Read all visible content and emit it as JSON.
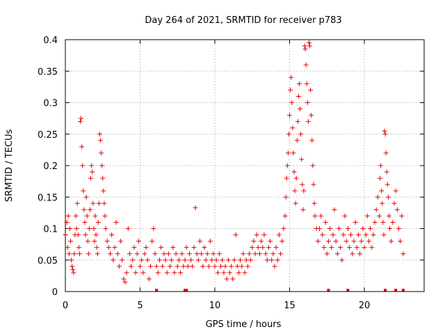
{
  "chart_data": {
    "type": "scatter",
    "title": "Day 264 of 2021, SRMTID for receiver p783",
    "xlabel": "GPS time / hours",
    "ylabel": "SRMTID / TECUs",
    "xlim": [
      0,
      24
    ],
    "ylim": [
      0,
      0.4
    ],
    "xticks": [
      0,
      5,
      10,
      15,
      20
    ],
    "yticks": [
      0,
      0.05,
      0.1,
      0.15,
      0.2,
      0.25,
      0.3,
      0.35,
      0.4
    ],
    "xtick_labels": [
      "0",
      "5",
      "10",
      "15",
      "20"
    ],
    "ytick_labels": [
      "0",
      "0.05",
      "0.1",
      "0.15",
      "0.2",
      "0.25",
      "0.3",
      "0.35",
      "0.4"
    ],
    "grid": true,
    "marker": "+",
    "color": "#e60000",
    "series": [
      {
        "name": "SRMTID",
        "points": [
          [
            0.0,
            0.09
          ],
          [
            0.1,
            0.11
          ],
          [
            0.15,
            0.07
          ],
          [
            0.2,
            0.12
          ],
          [
            0.25,
            0.06
          ],
          [
            0.3,
            0.1
          ],
          [
            0.35,
            0.08
          ],
          [
            0.4,
            0.05
          ],
          [
            0.45,
            0.04
          ],
          [
            0.5,
            0.035
          ],
          [
            0.55,
            0.03
          ],
          [
            0.6,
            0.06
          ],
          [
            0.65,
            0.09
          ],
          [
            0.7,
            0.12
          ],
          [
            0.75,
            0.1
          ],
          [
            0.8,
            0.14
          ],
          [
            0.85,
            0.09
          ],
          [
            0.9,
            0.07
          ],
          [
            0.95,
            0.06
          ],
          [
            1.0,
            0.27
          ],
          [
            1.05,
            0.275
          ],
          [
            1.1,
            0.23
          ],
          [
            1.15,
            0.2
          ],
          [
            1.2,
            0.16
          ],
          [
            1.25,
            0.13
          ],
          [
            1.3,
            0.11
          ],
          [
            1.35,
            0.09
          ],
          [
            1.4,
            0.15
          ],
          [
            1.45,
            0.12
          ],
          [
            1.5,
            0.08
          ],
          [
            1.55,
            0.06
          ],
          [
            1.6,
            0.1
          ],
          [
            1.65,
            0.13
          ],
          [
            1.7,
            0.18
          ],
          [
            1.75,
            0.2
          ],
          [
            1.8,
            0.19
          ],
          [
            1.85,
            0.14
          ],
          [
            1.9,
            0.1
          ],
          [
            1.95,
            0.08
          ],
          [
            2.0,
            0.12
          ],
          [
            2.05,
            0.09
          ],
          [
            2.1,
            0.07
          ],
          [
            2.15,
            0.06
          ],
          [
            2.2,
            0.11
          ],
          [
            2.25,
            0.14
          ],
          [
            2.3,
            0.25
          ],
          [
            2.35,
            0.24
          ],
          [
            2.4,
            0.22
          ],
          [
            2.45,
            0.2
          ],
          [
            2.5,
            0.18
          ],
          [
            2.55,
            0.16
          ],
          [
            2.6,
            0.14
          ],
          [
            2.65,
            0.12
          ],
          [
            2.7,
            0.1
          ],
          [
            2.8,
            0.08
          ],
          [
            2.9,
            0.07
          ],
          [
            3.0,
            0.06
          ],
          [
            3.1,
            0.09
          ],
          [
            3.2,
            0.05
          ],
          [
            3.3,
            0.07
          ],
          [
            3.4,
            0.11
          ],
          [
            3.5,
            0.06
          ],
          [
            3.6,
            0.04
          ],
          [
            3.7,
            0.08
          ],
          [
            3.8,
            0.05
          ],
          [
            3.9,
            0.02
          ],
          [
            4.0,
            0.015
          ],
          [
            4.1,
            0.03
          ],
          [
            4.2,
            0.1
          ],
          [
            4.3,
            0.06
          ],
          [
            4.4,
            0.04
          ],
          [
            4.5,
            0.05
          ],
          [
            4.6,
            0.07
          ],
          [
            4.7,
            0.03
          ],
          [
            4.8,
            0.06
          ],
          [
            4.9,
            0.08
          ],
          [
            5.0,
            0.04
          ],
          [
            5.1,
            0.05
          ],
          [
            5.2,
            0.03
          ],
          [
            5.3,
            0.06
          ],
          [
            5.4,
            0.07
          ],
          [
            5.5,
            0.05
          ],
          [
            5.6,
            0.02
          ],
          [
            5.7,
            0.04
          ],
          [
            5.8,
            0.08
          ],
          [
            5.9,
            0.1
          ],
          [
            6.0,
            0.06
          ],
          [
            6.1,
            0.04
          ],
          [
            6.2,
            0.03
          ],
          [
            6.3,
            0.05
          ],
          [
            6.4,
            0.07
          ],
          [
            6.5,
            0.04
          ],
          [
            6.6,
            0.06
          ],
          [
            6.7,
            0.05
          ],
          [
            6.8,
            0.03
          ],
          [
            6.9,
            0.06
          ],
          [
            7.0,
            0.04
          ],
          [
            7.1,
            0.05
          ],
          [
            7.2,
            0.07
          ],
          [
            7.3,
            0.03
          ],
          [
            7.4,
            0.06
          ],
          [
            7.5,
            0.04
          ],
          [
            7.6,
            0.05
          ],
          [
            7.7,
            0.03
          ],
          [
            7.8,
            0.06
          ],
          [
            7.9,
            0.04
          ],
          [
            8.0,
            0.05
          ],
          [
            8.1,
            0.07
          ],
          [
            8.2,
            0.04
          ],
          [
            8.3,
            0.06
          ],
          [
            8.4,
            0.05
          ],
          [
            8.5,
            0.04
          ],
          [
            8.6,
            0.07
          ],
          [
            8.7,
            0.133
          ],
          [
            8.8,
            0.06
          ],
          [
            8.9,
            0.05
          ],
          [
            9.0,
            0.08
          ],
          [
            9.1,
            0.06
          ],
          [
            9.2,
            0.04
          ],
          [
            9.3,
            0.07
          ],
          [
            9.4,
            0.05
          ],
          [
            9.5,
            0.06
          ],
          [
            9.6,
            0.04
          ],
          [
            9.7,
            0.08
          ],
          [
            9.8,
            0.05
          ],
          [
            9.9,
            0.06
          ],
          [
            10.0,
            0.04
          ],
          [
            10.1,
            0.05
          ],
          [
            10.2,
            0.03
          ],
          [
            10.3,
            0.06
          ],
          [
            10.4,
            0.04
          ],
          [
            10.5,
            0.05
          ],
          [
            10.6,
            0.03
          ],
          [
            10.7,
            0.04
          ],
          [
            10.8,
            0.02
          ],
          [
            10.9,
            0.05
          ],
          [
            11.0,
            0.03
          ],
          [
            11.1,
            0.04
          ],
          [
            11.2,
            0.02
          ],
          [
            11.3,
            0.05
          ],
          [
            11.4,
            0.09
          ],
          [
            11.5,
            0.04
          ],
          [
            11.6,
            0.03
          ],
          [
            11.7,
            0.05
          ],
          [
            11.8,
            0.04
          ],
          [
            11.9,
            0.06
          ],
          [
            12.0,
            0.03
          ],
          [
            12.1,
            0.05
          ],
          [
            12.2,
            0.04
          ],
          [
            12.3,
            0.06
          ],
          [
            12.4,
            0.05
          ],
          [
            12.5,
            0.07
          ],
          [
            12.6,
            0.08
          ],
          [
            12.7,
            0.06
          ],
          [
            12.8,
            0.09
          ],
          [
            12.9,
            0.07
          ],
          [
            13.0,
            0.06
          ],
          [
            13.1,
            0.08
          ],
          [
            13.2,
            0.07
          ],
          [
            13.3,
            0.09
          ],
          [
            13.4,
            0.06
          ],
          [
            13.5,
            0.05
          ],
          [
            13.6,
            0.07
          ],
          [
            13.7,
            0.08
          ],
          [
            13.8,
            0.05
          ],
          [
            13.9,
            0.06
          ],
          [
            14.0,
            0.04
          ],
          [
            14.1,
            0.07
          ],
          [
            14.2,
            0.05
          ],
          [
            14.3,
            0.09
          ],
          [
            14.4,
            0.06
          ],
          [
            14.5,
            0.08
          ],
          [
            14.6,
            0.1
          ],
          [
            14.7,
            0.12
          ],
          [
            14.75,
            0.15
          ],
          [
            14.8,
            0.18
          ],
          [
            14.85,
            0.2
          ],
          [
            14.9,
            0.22
          ],
          [
            14.95,
            0.25
          ],
          [
            15.0,
            0.28
          ],
          [
            15.05,
            0.32
          ],
          [
            15.1,
            0.34
          ],
          [
            15.15,
            0.3
          ],
          [
            15.2,
            0.26
          ],
          [
            15.25,
            0.22
          ],
          [
            15.3,
            0.19
          ],
          [
            15.35,
            0.16
          ],
          [
            15.4,
            0.14
          ],
          [
            15.45,
            0.18
          ],
          [
            15.5,
            0.24
          ],
          [
            15.55,
            0.27
          ],
          [
            15.6,
            0.31
          ],
          [
            15.65,
            0.33
          ],
          [
            15.7,
            0.29
          ],
          [
            15.75,
            0.25
          ],
          [
            15.8,
            0.21
          ],
          [
            15.85,
            0.17
          ],
          [
            15.9,
            0.13
          ],
          [
            15.95,
            0.16
          ],
          [
            16.0,
            0.39
          ],
          [
            16.05,
            0.385
          ],
          [
            16.1,
            0.36
          ],
          [
            16.15,
            0.33
          ],
          [
            16.2,
            0.3
          ],
          [
            16.25,
            0.27
          ],
          [
            16.3,
            0.395
          ],
          [
            16.35,
            0.39
          ],
          [
            16.4,
            0.32
          ],
          [
            16.45,
            0.28
          ],
          [
            16.5,
            0.24
          ],
          [
            16.55,
            0.2
          ],
          [
            16.6,
            0.17
          ],
          [
            16.65,
            0.14
          ],
          [
            16.7,
            0.12
          ],
          [
            16.8,
            0.1
          ],
          [
            16.9,
            0.08
          ],
          [
            17.0,
            0.1
          ],
          [
            17.1,
            0.12
          ],
          [
            17.2,
            0.09
          ],
          [
            17.3,
            0.07
          ],
          [
            17.4,
            0.11
          ],
          [
            17.5,
            0.06
          ],
          [
            17.6,
            0.08
          ],
          [
            17.7,
            0.1
          ],
          [
            17.8,
            0.07
          ],
          [
            17.9,
            0.09
          ],
          [
            18.0,
            0.13
          ],
          [
            18.1,
            0.08
          ],
          [
            18.2,
            0.06
          ],
          [
            18.3,
            0.1
          ],
          [
            18.4,
            0.07
          ],
          [
            18.5,
            0.05
          ],
          [
            18.6,
            0.09
          ],
          [
            18.7,
            0.12
          ],
          [
            18.8,
            0.08
          ],
          [
            18.9,
            0.1
          ],
          [
            19.0,
            0.07
          ],
          [
            19.1,
            0.09
          ],
          [
            19.2,
            0.06
          ],
          [
            19.3,
            0.08
          ],
          [
            19.4,
            0.11
          ],
          [
            19.5,
            0.07
          ],
          [
            19.6,
            0.09
          ],
          [
            19.7,
            0.06
          ],
          [
            19.8,
            0.08
          ],
          [
            19.9,
            0.1
          ],
          [
            20.0,
            0.07
          ],
          [
            20.1,
            0.09
          ],
          [
            20.2,
            0.12
          ],
          [
            20.3,
            0.08
          ],
          [
            20.4,
            0.1
          ],
          [
            20.5,
            0.07
          ],
          [
            20.6,
            0.09
          ],
          [
            20.7,
            0.11
          ],
          [
            20.8,
            0.13
          ],
          [
            20.9,
            0.15
          ],
          [
            21.0,
            0.12
          ],
          [
            21.05,
            0.18
          ],
          [
            21.1,
            0.2
          ],
          [
            21.15,
            0.16
          ],
          [
            21.2,
            0.14
          ],
          [
            21.25,
            0.11
          ],
          [
            21.3,
            0.09
          ],
          [
            21.35,
            0.255
          ],
          [
            21.4,
            0.25
          ],
          [
            21.45,
            0.22
          ],
          [
            21.5,
            0.19
          ],
          [
            21.55,
            0.17
          ],
          [
            21.6,
            0.15
          ],
          [
            21.65,
            0.12
          ],
          [
            21.7,
            0.1
          ],
          [
            21.8,
            0.08
          ],
          [
            21.9,
            0.11
          ],
          [
            22.0,
            0.14
          ],
          [
            22.1,
            0.16
          ],
          [
            22.2,
            0.13
          ],
          [
            22.3,
            0.1
          ],
          [
            22.4,
            0.08
          ],
          [
            22.5,
            0.12
          ],
          [
            22.6,
            0.06
          ]
        ]
      }
    ],
    "gap_markers_x": [
      6.1,
      8.0,
      8.1,
      17.6,
      18.9,
      21.4,
      22.1,
      22.6
    ]
  }
}
